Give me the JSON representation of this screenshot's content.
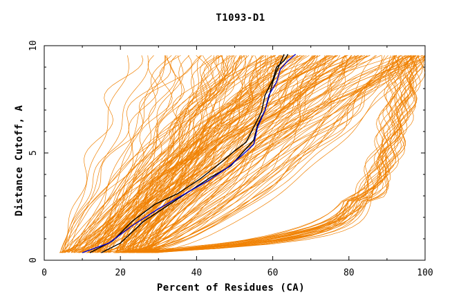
{
  "chart_data": {
    "type": "line",
    "title": "T1093-D1",
    "xlabel": "Percent of Residues (CA)",
    "ylabel": "Distance Cutoff, A",
    "xlim": [
      0,
      100
    ],
    "ylim": [
      0,
      10
    ],
    "x_ticks": [
      0,
      20,
      40,
      60,
      80,
      100
    ],
    "y_ticks": [
      0,
      5,
      10
    ],
    "grid": false,
    "legend": "none",
    "colors": {
      "models": "#f08000",
      "reference_black": "#000000",
      "reference_blue": "#0000cc",
      "axes": "#000000"
    },
    "series": [
      {
        "x": [
          15,
          20,
          26,
          32,
          38,
          44,
          49,
          52,
          55,
          56,
          58,
          59,
          60,
          61,
          62,
          63
        ],
        "y": [
          0.35,
          0.8,
          1.8,
          2.5,
          3.2,
          3.9,
          4.4,
          5.0,
          5.6,
          6.3,
          7.0,
          7.6,
          8.3,
          8.8,
          9.2,
          9.6
        ],
        "color": "#000000"
      },
      {
        "x": [
          12,
          18,
          23,
          29,
          35,
          41,
          46,
          50,
          53,
          55,
          57,
          58,
          60,
          61,
          63,
          64
        ],
        "y": [
          0.35,
          0.9,
          1.8,
          2.6,
          3.1,
          3.8,
          4.5,
          5.1,
          5.5,
          6.2,
          6.9,
          7.7,
          8.4,
          9.0,
          9.3,
          9.6
        ],
        "color": "#000000"
      },
      {
        "x": [
          10,
          17,
          23,
          30,
          37,
          43,
          48,
          52,
          55,
          56,
          58,
          59,
          61,
          62,
          64,
          66
        ],
        "y": [
          0.35,
          0.8,
          1.6,
          2.4,
          3.1,
          3.7,
          4.3,
          4.9,
          5.4,
          6.2,
          7.0,
          7.7,
          8.3,
          8.9,
          9.3,
          9.6
        ],
        "color": "#0000cc"
      }
    ]
  }
}
